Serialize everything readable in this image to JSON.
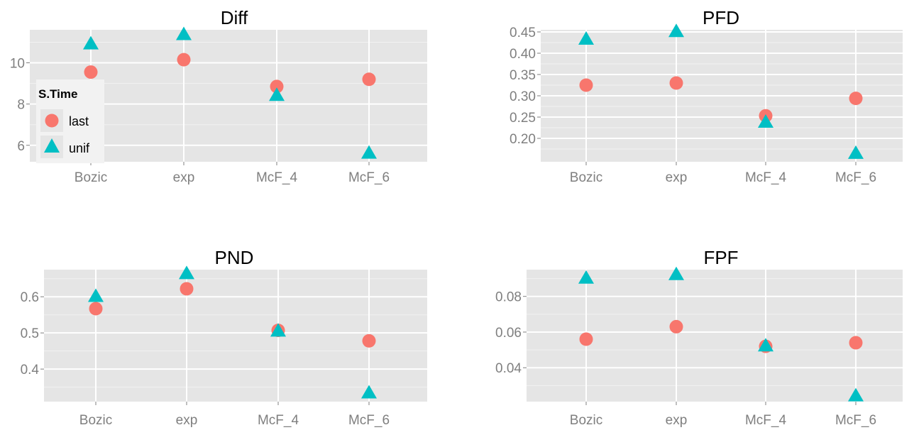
{
  "colors": {
    "last": "#F8766D",
    "unif": "#00BFC4",
    "panel": "#E5E5E5",
    "grid": "#FFFFFF",
    "tick": "#7F7F7F"
  },
  "legend": {
    "title": "S.Time",
    "items": [
      {
        "label": "last",
        "shape": "circle",
        "color": "#F8766D"
      },
      {
        "label": "unif",
        "shape": "triangle",
        "color": "#00BFC4"
      }
    ]
  },
  "chart_data": [
    {
      "type": "scatter",
      "title": "Diff",
      "categories": [
        "Bozic",
        "exp",
        "McF_4",
        "McF_6"
      ],
      "yticks": [
        "6",
        "8",
        "10"
      ],
      "ylim": [
        5.2,
        11.6
      ],
      "series": [
        {
          "name": "last",
          "values": [
            9.55,
            10.15,
            8.85,
            9.2
          ]
        },
        {
          "name": "unif",
          "values": [
            10.9,
            11.35,
            8.4,
            5.6
          ]
        }
      ]
    },
    {
      "type": "scatter",
      "title": "PFD",
      "categories": [
        "Bozic",
        "exp",
        "McF_4",
        "McF_6"
      ],
      "yticks": [
        "0.20",
        "0.25",
        "0.30",
        "0.35",
        "0.40",
        "0.45"
      ],
      "ylim": [
        0.145,
        0.455
      ],
      "series": [
        {
          "name": "last",
          "values": [
            0.325,
            0.33,
            0.253,
            0.294
          ]
        },
        {
          "name": "unif",
          "values": [
            0.432,
            0.45,
            0.237,
            0.164
          ]
        }
      ]
    },
    {
      "type": "scatter",
      "title": "PND",
      "categories": [
        "Bozic",
        "exp",
        "McF_4",
        "McF_6"
      ],
      "yticks": [
        "0.4",
        "0.5",
        "0.6"
      ],
      "ylim": [
        0.31,
        0.675
      ],
      "series": [
        {
          "name": "last",
          "values": [
            0.567,
            0.622,
            0.507,
            0.478
          ]
        },
        {
          "name": "unif",
          "values": [
            0.6,
            0.663,
            0.504,
            0.333
          ]
        }
      ]
    },
    {
      "type": "scatter",
      "title": "FPF",
      "categories": [
        "Bozic",
        "exp",
        "McF_4",
        "McF_6"
      ],
      "yticks": [
        "0.04",
        "0.06",
        "0.08"
      ],
      "ylim": [
        0.021,
        0.095
      ],
      "series": [
        {
          "name": "last",
          "values": [
            0.056,
            0.063,
            0.052,
            0.054
          ]
        },
        {
          "name": "unif",
          "values": [
            0.09,
            0.092,
            0.052,
            0.024
          ]
        }
      ]
    }
  ]
}
